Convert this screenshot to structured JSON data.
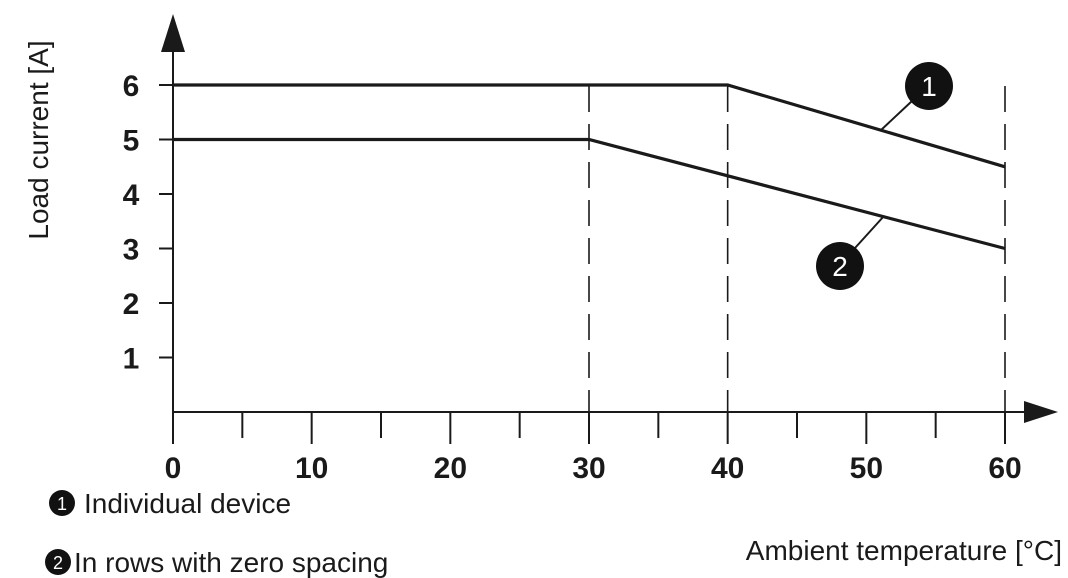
{
  "chart_data": {
    "type": "line",
    "xlabel": "Ambient temperature [°C]",
    "ylabel": "Load current [A]",
    "xlim": [
      0,
      60
    ],
    "ylim": [
      0,
      6.5
    ],
    "x_ticks": [
      0,
      10,
      20,
      30,
      40,
      50,
      60
    ],
    "x_minor_ticks": [
      5,
      15,
      25,
      35,
      45,
      55
    ],
    "y_ticks": [
      1,
      2,
      3,
      4,
      5,
      6
    ],
    "reference_lines_x": [
      30,
      40,
      60
    ],
    "series": [
      {
        "marker": "1",
        "name": "Individual device",
        "x": [
          0,
          40,
          60
        ],
        "y": [
          6,
          6,
          4.5
        ]
      },
      {
        "marker": "2",
        "name": "In rows with zero spacing",
        "x": [
          0,
          30,
          60
        ],
        "y": [
          5,
          5,
          3
        ]
      }
    ],
    "legend_position": "bottom-left"
  },
  "colors": {
    "line": "#1a1a1a",
    "marker_fill": "#111111"
  }
}
